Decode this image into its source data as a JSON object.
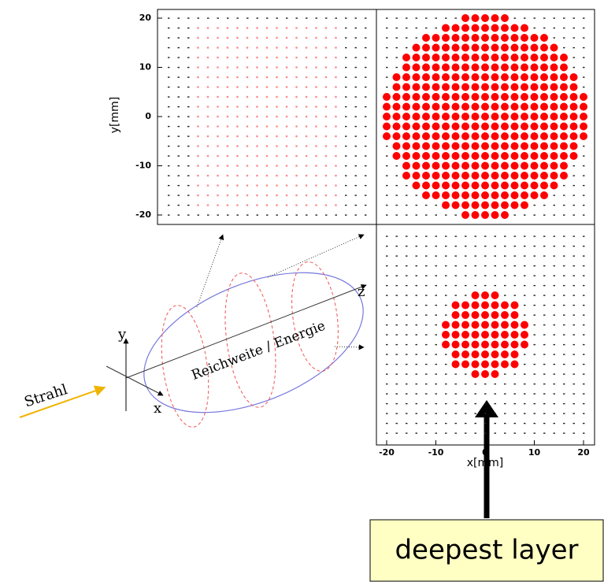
{
  "panels": {
    "y_label": "y[mm]",
    "x_label": "x[mm]",
    "yticks": [
      20,
      10,
      0,
      -10,
      -20
    ],
    "xticks": [
      -20,
      -10,
      0,
      10,
      20
    ]
  },
  "diagram": {
    "beam": "Strahl",
    "axis_x": "x",
    "axis_y": "y",
    "axis_z": "z",
    "range": "Reichweite / Energie"
  },
  "callout": "deepest layer"
}
